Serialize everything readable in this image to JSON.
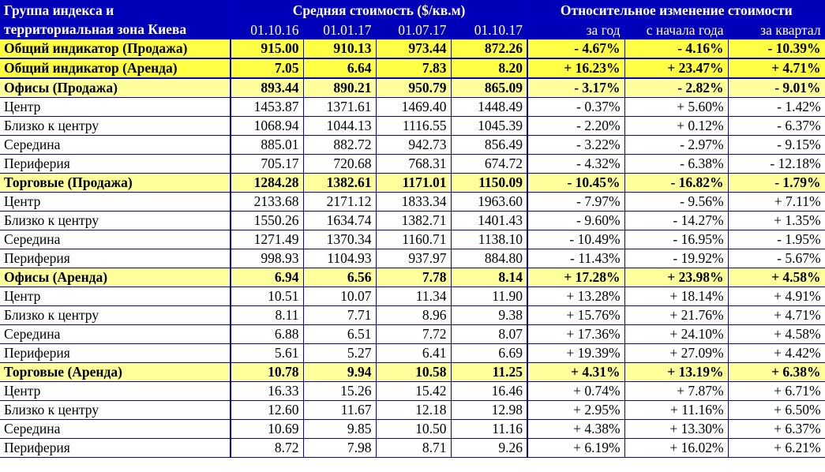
{
  "header": {
    "title_line1": "Группа индекса и",
    "title_line2": "территориальная зона Киева",
    "group_avg": "Средняя стоимость ($/кв.м)",
    "group_rel": "Относительное изменение стоимости",
    "dates": [
      "01.10.16",
      "01.01.17",
      "01.07.17",
      "01.10.17"
    ],
    "changes": [
      "за год",
      "с начала года",
      "за квартал"
    ]
  },
  "indicators": [
    {
      "label": "Общий индикатор (Продажа)",
      "v": [
        "915.00",
        "910.13",
        "973.44",
        "872.26"
      ],
      "c": [
        "- 4.67%",
        "- 4.16%",
        "- 10.39%"
      ]
    },
    {
      "label": "Общий индикатор (Аренда)",
      "v": [
        "7.05",
        "6.64",
        "7.83",
        "8.20"
      ],
      "c": [
        "+ 16.23%",
        "+ 23.47%",
        "+ 4.71%"
      ]
    }
  ],
  "sections": [
    {
      "label": "Офисы (Продажа)",
      "v": [
        "893.44",
        "890.21",
        "950.79",
        "865.09"
      ],
      "c": [
        "- 3.17%",
        "- 2.82%",
        "- 9.01%"
      ],
      "rows": [
        {
          "label": "Центр",
          "v": [
            "1453.87",
            "1371.61",
            "1469.40",
            "1448.49"
          ],
          "c": [
            "- 0.37%",
            "+ 5.60%",
            "- 1.42%"
          ]
        },
        {
          "label": "Близко к центру",
          "v": [
            "1068.94",
            "1044.13",
            "1116.55",
            "1045.39"
          ],
          "c": [
            "- 2.20%",
            "+ 0.12%",
            "- 6.37%"
          ]
        },
        {
          "label": "Середина",
          "v": [
            "885.01",
            "882.72",
            "942.73",
            "856.49"
          ],
          "c": [
            "- 3.22%",
            "- 2.97%",
            "- 9.15%"
          ]
        },
        {
          "label": "Периферия",
          "v": [
            "705.17",
            "720.68",
            "768.31",
            "674.72"
          ],
          "c": [
            "- 4.32%",
            "- 6.38%",
            "- 12.18%"
          ]
        }
      ]
    },
    {
      "label": "Торговые (Продажа)",
      "v": [
        "1284.28",
        "1382.61",
        "1171.01",
        "1150.09"
      ],
      "c": [
        "- 10.45%",
        "- 16.82%",
        "- 1.79%"
      ],
      "rows": [
        {
          "label": "Центр",
          "v": [
            "2133.68",
            "2171.12",
            "1833.34",
            "1963.60"
          ],
          "c": [
            "- 7.97%",
            "- 9.56%",
            "+ 7.11%"
          ]
        },
        {
          "label": "Близко к центру",
          "v": [
            "1550.26",
            "1634.74",
            "1382.71",
            "1401.43"
          ],
          "c": [
            "- 9.60%",
            "- 14.27%",
            "+ 1.35%"
          ]
        },
        {
          "label": "Середина",
          "v": [
            "1271.49",
            "1370.34",
            "1160.71",
            "1138.10"
          ],
          "c": [
            "- 10.49%",
            "- 16.95%",
            "- 1.95%"
          ]
        },
        {
          "label": "Периферия",
          "v": [
            "998.93",
            "1104.93",
            "937.97",
            "884.80"
          ],
          "c": [
            "- 11.43%",
            "- 19.92%",
            "- 5.67%"
          ]
        }
      ]
    },
    {
      "label": "Офисы (Аренда)",
      "v": [
        "6.94",
        "6.56",
        "7.78",
        "8.14"
      ],
      "c": [
        "+ 17.28%",
        "+ 23.98%",
        "+ 4.58%"
      ],
      "rows": [
        {
          "label": "Центр",
          "v": [
            "10.51",
            "10.07",
            "11.34",
            "11.90"
          ],
          "c": [
            "+ 13.28%",
            "+ 18.14%",
            "+ 4.91%"
          ]
        },
        {
          "label": "Близко к центру",
          "v": [
            "8.11",
            "7.71",
            "8.96",
            "9.38"
          ],
          "c": [
            "+ 15.76%",
            "+ 21.76%",
            "+ 4.71%"
          ]
        },
        {
          "label": "Середина",
          "v": [
            "6.88",
            "6.51",
            "7.72",
            "8.07"
          ],
          "c": [
            "+ 17.36%",
            "+ 24.10%",
            "+ 4.58%"
          ]
        },
        {
          "label": "Периферия",
          "v": [
            "5.61",
            "5.27",
            "6.41",
            "6.69"
          ],
          "c": [
            "+ 19.39%",
            "+ 27.09%",
            "+ 4.42%"
          ]
        }
      ]
    },
    {
      "label": "Торговые (Аренда)",
      "v": [
        "10.78",
        "9.94",
        "10.58",
        "11.25"
      ],
      "c": [
        "+ 4.31%",
        "+ 13.19%",
        "+ 6.38%"
      ],
      "rows": [
        {
          "label": "Центр",
          "v": [
            "16.33",
            "15.26",
            "15.42",
            "16.46"
          ],
          "c": [
            "+ 0.74%",
            "+ 7.87%",
            "+ 6.71%"
          ]
        },
        {
          "label": "Близко к центру",
          "v": [
            "12.60",
            "11.67",
            "12.18",
            "12.98"
          ],
          "c": [
            "+ 2.95%",
            "+ 11.16%",
            "+ 6.50%"
          ]
        },
        {
          "label": "Середина",
          "v": [
            "10.69",
            "9.85",
            "10.50",
            "11.16"
          ],
          "c": [
            "+ 4.38%",
            "+ 13.30%",
            "+ 6.37%"
          ]
        },
        {
          "label": "Периферия",
          "v": [
            "8.72",
            "7.98",
            "8.71",
            "9.26"
          ],
          "c": [
            "+ 6.19%",
            "+ 16.02%",
            "+ 6.21%"
          ]
        }
      ]
    }
  ]
}
